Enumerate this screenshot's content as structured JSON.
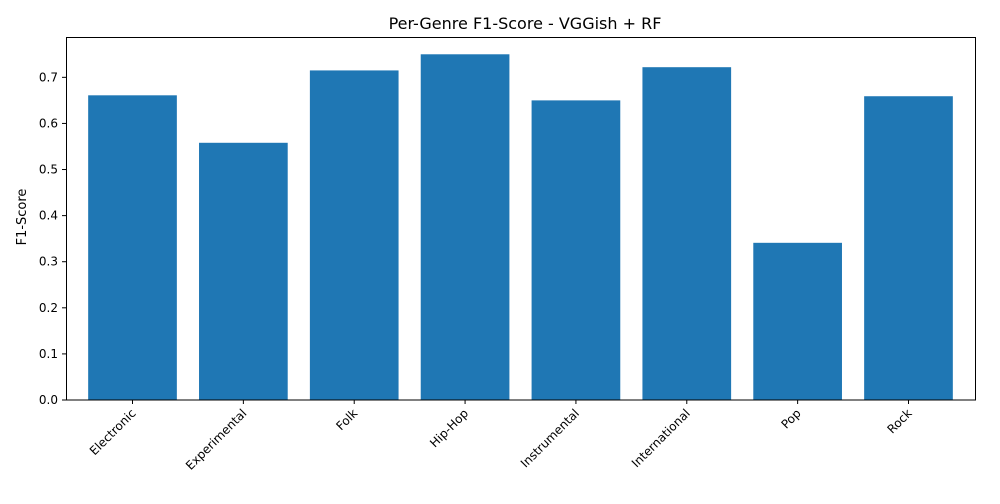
{
  "chart_data": {
    "type": "bar",
    "title": "Per-Genre F1-Score - VGGish + RF",
    "xlabel": "",
    "ylabel": "F1-Score",
    "categories": [
      "Electronic",
      "Experimental",
      "Folk",
      "Hip-Hop",
      "Instrumental",
      "International",
      "Pop",
      "Rock"
    ],
    "values": [
      0.661,
      0.558,
      0.715,
      0.75,
      0.65,
      0.722,
      0.341,
      0.659
    ],
    "ylim": [
      0,
      0.7875
    ],
    "yticks": [
      0.0,
      0.1,
      0.2,
      0.3,
      0.4,
      0.5,
      0.6,
      0.7
    ],
    "ytick_labels": [
      "0.0",
      "0.1",
      "0.2",
      "0.3",
      "0.4",
      "0.5",
      "0.6",
      "0.7"
    ],
    "bar_color": "#1f77b4",
    "grid": false,
    "legend": "none"
  }
}
